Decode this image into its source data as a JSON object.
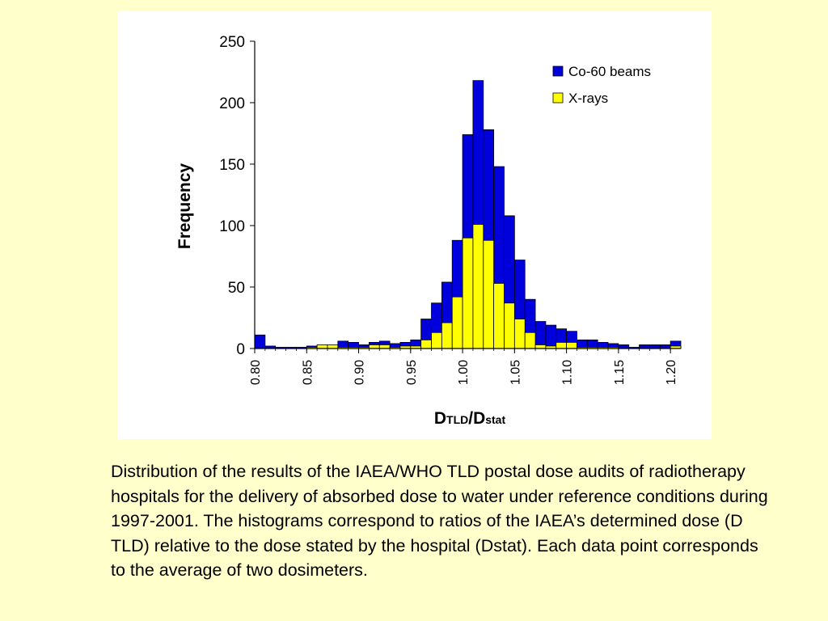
{
  "chart_data": {
    "type": "bar",
    "stacked": false,
    "overlaid": true,
    "xlabel_main": "D",
    "xlabel_sub1": "TLD",
    "xlabel_slash": "/D",
    "xlabel_sub2": "stat",
    "ylabel": "Frequency",
    "ylim": [
      0,
      250
    ],
    "xlim": [
      0.8,
      1.21
    ],
    "bin_width": 0.01,
    "yticks": [
      "0",
      "50",
      "100",
      "150",
      "200",
      "250"
    ],
    "xticks": [
      "0.80",
      "0.85",
      "0.90",
      "0.95",
      "1.00",
      "1.05",
      "1.10",
      "1.15",
      "1.20"
    ],
    "grid": false,
    "legend_position": "top-right",
    "bin_starts": [
      0.8,
      0.81,
      0.82,
      0.83,
      0.84,
      0.85,
      0.86,
      0.87,
      0.88,
      0.89,
      0.9,
      0.91,
      0.92,
      0.93,
      0.94,
      0.95,
      0.96,
      0.97,
      0.98,
      0.99,
      1.0,
      1.01,
      1.02,
      1.03,
      1.04,
      1.05,
      1.06,
      1.07,
      1.08,
      1.09,
      1.1,
      1.11,
      1.12,
      1.13,
      1.14,
      1.15,
      1.16,
      1.17,
      1.18,
      1.19,
      1.2
    ],
    "series": [
      {
        "name": "Co-60 beams",
        "color": "#0000dd",
        "values": [
          11,
          2,
          1,
          1,
          1,
          2,
          2,
          2,
          6,
          5,
          3,
          5,
          6,
          4,
          5,
          7,
          24,
          37,
          54,
          88,
          174,
          218,
          178,
          148,
          108,
          72,
          40,
          22,
          19,
          16,
          14,
          7,
          7,
          5,
          4,
          3,
          1,
          3,
          3,
          3,
          6
        ]
      },
      {
        "name": "X-rays",
        "color": "#ffff00",
        "values": [
          0,
          0,
          0,
          0,
          0,
          1,
          3,
          3,
          1,
          1,
          1,
          3,
          3,
          1,
          2,
          2,
          7,
          13,
          21,
          42,
          90,
          101,
          88,
          53,
          37,
          24,
          13,
          3,
          2,
          5,
          5,
          1,
          1,
          1,
          1,
          0,
          0,
          0,
          0,
          0,
          2
        ]
      }
    ]
  },
  "caption": "Distribution of the results of the IAEA/WHO TLD postal dose audits of radiotherapy hospitals for the delivery of absorbed dose to water under reference conditions during 1997-2001. The histograms correspond to ratios of the IAEA’s determined dose (D TLD) relative to the dose stated by the hospital (Dstat). Each data point corresponds to the average of two dosimeters."
}
